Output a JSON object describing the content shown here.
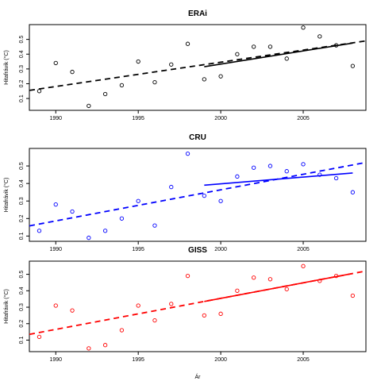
{
  "chart_data": [
    {
      "type": "scatter",
      "title": "ERAi",
      "ylabel": "Hitafrávik (°C)",
      "xlabel": "",
      "color": "#000000",
      "xlim": [
        1988.4,
        2008.8
      ],
      "ylim": [
        0.02,
        0.6
      ],
      "xticks": [
        "1990",
        "1995",
        "2000",
        "2005"
      ],
      "yticks": [
        "0.1",
        "0.2",
        "0.3",
        "0.4",
        "0.5"
      ],
      "series": [
        {
          "x": [
            1989,
            1990,
            1991,
            1992,
            1993,
            1994,
            1995,
            1996,
            1997,
            1998,
            1999,
            2000,
            2001,
            2002,
            2003,
            2004,
            2005,
            2006,
            2007,
            2008
          ],
          "y": [
            0.15,
            0.34,
            0.28,
            0.05,
            0.13,
            0.19,
            0.35,
            0.21,
            0.33,
            0.47,
            0.23,
            0.25,
            0.4,
            0.45,
            0.45,
            0.37,
            0.58,
            0.52,
            0.46,
            0.32
          ]
        }
      ],
      "trend_full": {
        "x": [
          1988.4,
          2008.8
        ],
        "y": [
          0.155,
          0.49
        ]
      },
      "trend_recent": {
        "x": [
          1999,
          2008
        ],
        "y": [
          0.315,
          0.475
        ]
      }
    },
    {
      "type": "scatter",
      "title": "CRU",
      "ylabel": "Hitafrávik (°C)",
      "xlabel": "",
      "color": "#0000ff",
      "xlim": [
        1988.4,
        2008.8
      ],
      "ylim": [
        0.07,
        0.6
      ],
      "xticks": [
        "1990",
        "1995",
        "2000",
        "2005"
      ],
      "yticks": [
        "0.1",
        "0.2",
        "0.3",
        "0.4",
        "0.5"
      ],
      "series": [
        {
          "x": [
            1989,
            1990,
            1991,
            1992,
            1993,
            1994,
            1995,
            1996,
            1997,
            1998,
            1999,
            2000,
            2001,
            2002,
            2003,
            2004,
            2005,
            2006,
            2007,
            2008
          ],
          "y": [
            0.13,
            0.28,
            0.24,
            0.09,
            0.13,
            0.2,
            0.3,
            0.16,
            0.38,
            0.57,
            0.33,
            0.3,
            0.44,
            0.49,
            0.5,
            0.47,
            0.51,
            0.45,
            0.43,
            0.35
          ]
        }
      ],
      "trend_full": {
        "x": [
          1988.4,
          2008.8
        ],
        "y": [
          0.158,
          0.52
        ]
      },
      "trend_recent": {
        "x": [
          1999,
          2008
        ],
        "y": [
          0.39,
          0.46
        ]
      }
    },
    {
      "type": "scatter",
      "title": "GISS",
      "ylabel": "Hitafrávik (°C)",
      "xlabel": "Ár",
      "color": "#ff0000",
      "xlim": [
        1988.4,
        2008.8
      ],
      "ylim": [
        0.03,
        0.58
      ],
      "xticks": [
        "1990",
        "1995",
        "2000",
        "2005"
      ],
      "yticks": [
        "0.1",
        "0.2",
        "0.3",
        "0.4",
        "0.5"
      ],
      "series": [
        {
          "x": [
            1989,
            1990,
            1991,
            1992,
            1993,
            1994,
            1995,
            1996,
            1997,
            1998,
            1999,
            2000,
            2001,
            2002,
            2003,
            2004,
            2005,
            2006,
            2007,
            2008
          ],
          "y": [
            0.12,
            0.31,
            0.28,
            0.05,
            0.07,
            0.16,
            0.31,
            0.22,
            0.32,
            0.49,
            0.25,
            0.26,
            0.4,
            0.48,
            0.47,
            0.41,
            0.55,
            0.46,
            0.49,
            0.37
          ]
        }
      ],
      "trend_full": {
        "x": [
          1988.4,
          2008.8
        ],
        "y": [
          0.135,
          0.52
        ]
      },
      "trend_recent": {
        "x": [
          1999,
          2008
        ],
        "y": [
          0.335,
          0.505
        ]
      }
    }
  ]
}
